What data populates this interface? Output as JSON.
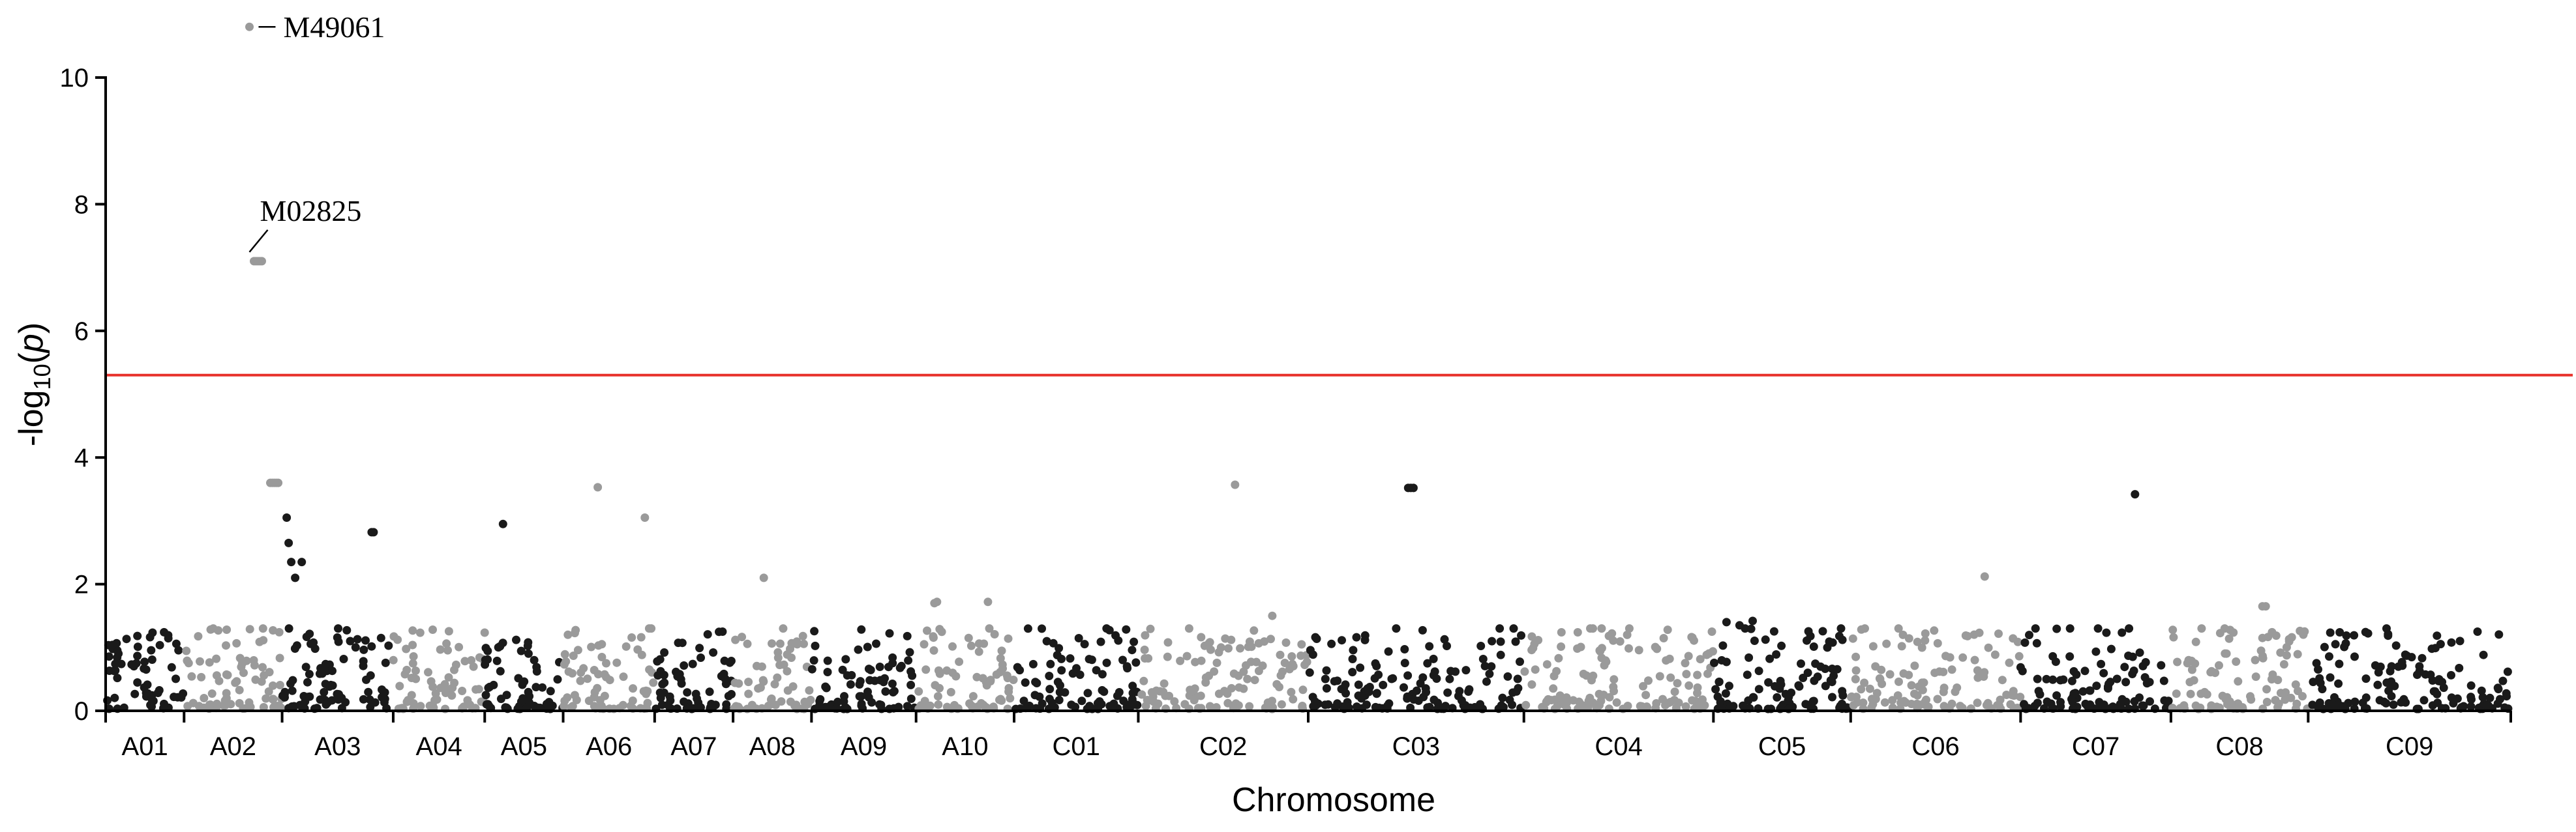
{
  "chart_data": {
    "type": "scatter",
    "subtype": "manhattan",
    "xlabel": "Chromosome",
    "ylabel_prefix": "-log",
    "ylabel_sub": "10",
    "ylabel_open": "(",
    "ylabel_var": "p",
    "ylabel_close": ")",
    "ylim": [
      0,
      10
    ],
    "yticks": [
      0,
      2,
      4,
      6,
      8,
      10
    ],
    "yticks_labels": [
      "0",
      "2",
      "4",
      "6",
      "8",
      "10"
    ],
    "grid": false,
    "legend": "none",
    "threshold": 5.3,
    "colors": {
      "odd": "#1a1a1a",
      "even": "#9a9a9a",
      "threshold": "#e8302a"
    },
    "chromosomes": [
      {
        "name": "A01",
        "start": 0.0,
        "end": 1.2
      },
      {
        "name": "A02",
        "start": 1.2,
        "end": 2.7
      },
      {
        "name": "A03",
        "start": 2.7,
        "end": 4.4
      },
      {
        "name": "A04",
        "start": 4.4,
        "end": 5.8
      },
      {
        "name": "A05",
        "start": 5.8,
        "end": 7.0
      },
      {
        "name": "A06",
        "start": 7.0,
        "end": 8.4
      },
      {
        "name": "A07",
        "start": 8.4,
        "end": 9.6
      },
      {
        "name": "A08",
        "start": 9.6,
        "end": 10.8
      },
      {
        "name": "A09",
        "start": 10.8,
        "end": 12.4
      },
      {
        "name": "A10",
        "start": 12.4,
        "end": 13.9
      },
      {
        "name": "C01",
        "start": 13.9,
        "end": 15.8
      },
      {
        "name": "C02",
        "start": 15.8,
        "end": 18.4
      },
      {
        "name": "C03",
        "start": 18.4,
        "end": 21.7
      },
      {
        "name": "C04",
        "start": 21.7,
        "end": 24.6
      },
      {
        "name": "C05",
        "start": 24.6,
        "end": 26.7
      },
      {
        "name": "C06",
        "start": 26.7,
        "end": 29.3
      },
      {
        "name": "C07",
        "start": 29.3,
        "end": 31.6
      },
      {
        "name": "C08",
        "start": 31.6,
        "end": 33.7
      },
      {
        "name": "C09",
        "start": 33.7,
        "end": 36.8
      }
    ],
    "annotations": [
      {
        "label": "M49061",
        "x": 2.2,
        "y": 10.8
      },
      {
        "label": "M02825",
        "x": 2.3,
        "y": 7.1
      }
    ],
    "highlight_points": [
      {
        "x": 2.2,
        "y": 10.8
      },
      {
        "x": 2.27,
        "y": 7.1
      },
      {
        "x": 2.3,
        "y": 7.1
      },
      {
        "x": 2.33,
        "y": 7.1
      },
      {
        "x": 2.36,
        "y": 7.1
      },
      {
        "x": 2.39,
        "y": 7.1
      },
      {
        "x": 2.52,
        "y": 3.6
      },
      {
        "x": 2.55,
        "y": 3.6
      },
      {
        "x": 2.58,
        "y": 3.6
      },
      {
        "x": 2.61,
        "y": 3.6
      },
      {
        "x": 2.64,
        "y": 3.6
      },
      {
        "x": 2.77,
        "y": 3.05
      },
      {
        "x": 2.8,
        "y": 2.65
      },
      {
        "x": 2.84,
        "y": 2.35
      },
      {
        "x": 2.9,
        "y": 2.1
      },
      {
        "x": 3.0,
        "y": 2.35
      },
      {
        "x": 4.07,
        "y": 2.82
      },
      {
        "x": 4.1,
        "y": 2.82
      },
      {
        "x": 6.08,
        "y": 2.95
      },
      {
        "x": 7.53,
        "y": 3.53
      },
      {
        "x": 8.25,
        "y": 3.05
      },
      {
        "x": 10.07,
        "y": 2.1
      },
      {
        "x": 12.68,
        "y": 1.7
      },
      {
        "x": 12.72,
        "y": 1.72
      },
      {
        "x": 13.5,
        "y": 1.72
      },
      {
        "x": 14.4,
        "y": 1.1
      },
      {
        "x": 17.28,
        "y": 3.57
      },
      {
        "x": 17.85,
        "y": 1.5
      },
      {
        "x": 19.93,
        "y": 3.52
      },
      {
        "x": 19.97,
        "y": 3.52
      },
      {
        "x": 20.01,
        "y": 3.52
      },
      {
        "x": 23.28,
        "y": 1.2
      },
      {
        "x": 23.9,
        "y": 1.28
      },
      {
        "x": 24.8,
        "y": 1.4
      },
      {
        "x": 25.0,
        "y": 1.35
      },
      {
        "x": 25.2,
        "y": 1.42
      },
      {
        "x": 27.5,
        "y": 1.2
      },
      {
        "x": 28.75,
        "y": 2.12
      },
      {
        "x": 31.05,
        "y": 3.42
      },
      {
        "x": 33.0,
        "y": 1.65
      },
      {
        "x": 33.05,
        "y": 1.65
      },
      {
        "x": 33.0,
        "y": 1.15
      }
    ]
  }
}
